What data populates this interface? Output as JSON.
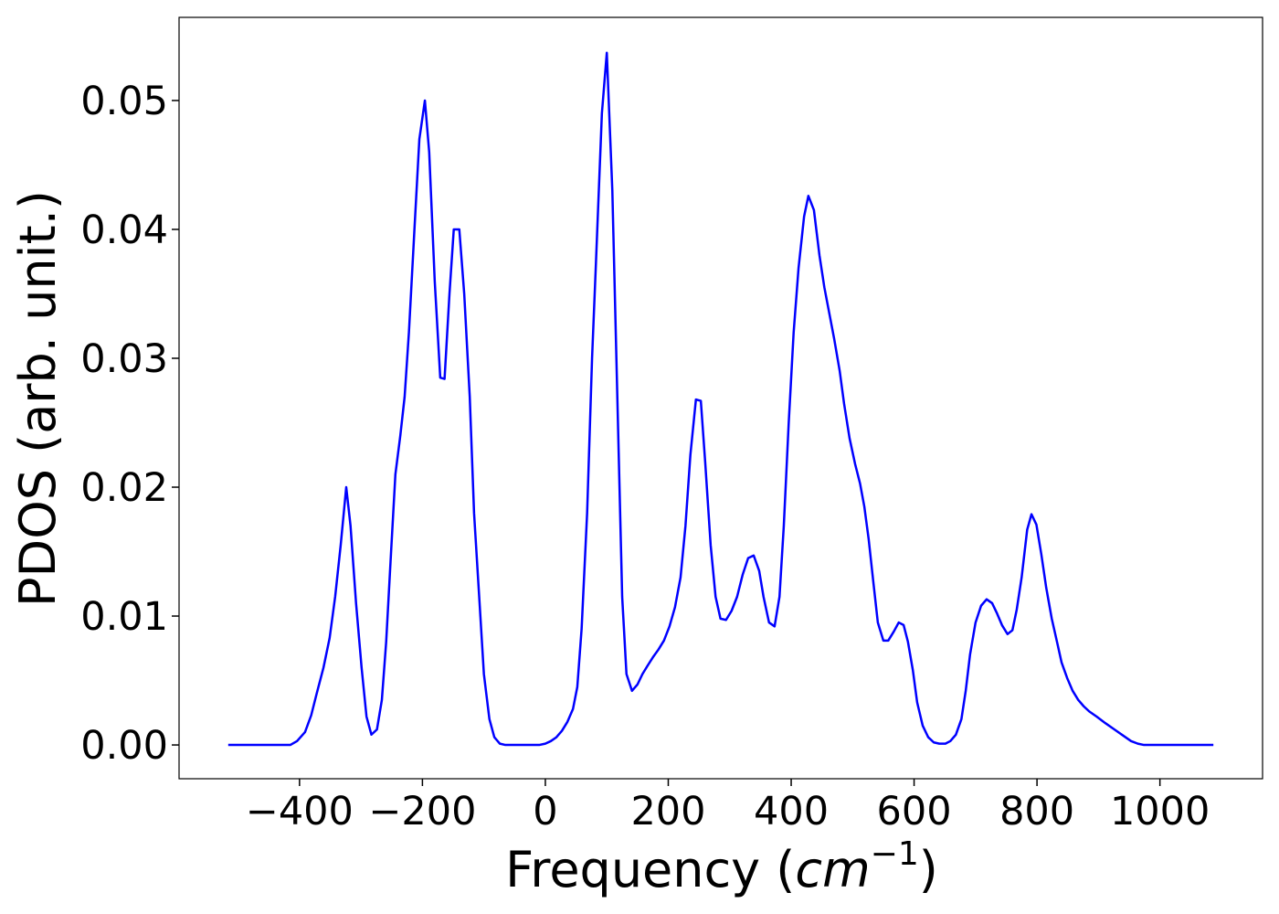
{
  "chart_data": {
    "type": "line",
    "xlabel": [
      "Frequency (",
      "cm",
      "−1",
      ")"
    ],
    "ylabel": "PDOS (arb. unit.)",
    "color": "#0000ff",
    "xlim": [
      -596,
      1167
    ],
    "ylim": [
      -0.00262,
      0.05645
    ],
    "xticks": [
      {
        "value": -400,
        "label": "−400"
      },
      {
        "value": -200,
        "label": "−200"
      },
      0,
      200,
      400,
      600,
      800,
      1000
    ],
    "yticks": [
      {
        "value": 0,
        "label": "0.00"
      },
      0.01,
      0.02,
      0.03,
      0.04,
      0.05
    ],
    "x": [
      -516,
      -415,
      -404,
      -391,
      -381,
      -372,
      -361,
      -351,
      -342,
      -333,
      -324,
      -317,
      -308,
      -299,
      -291,
      -283,
      -274,
      -266,
      -259,
      -251,
      -244,
      -236,
      -229,
      -222,
      -213,
      -205,
      -196,
      -189,
      -180,
      -171,
      -164,
      -156,
      -149,
      -140,
      -132,
      -123,
      -116,
      -107,
      -100,
      -91,
      -83,
      -74,
      -65,
      -10,
      0,
      9,
      18,
      27,
      36,
      45,
      52,
      59,
      68,
      76,
      82,
      92,
      100,
      109,
      125,
      132,
      141,
      150,
      158,
      167,
      175,
      184,
      193,
      202,
      211,
      220,
      228,
      236,
      245,
      253,
      260,
      269,
      277,
      285,
      294,
      303,
      312,
      321,
      330,
      339,
      348,
      355,
      364,
      373,
      381,
      388,
      396,
      404,
      412,
      421,
      428,
      437,
      446,
      454,
      462,
      470,
      479,
      486,
      495,
      504,
      512,
      519,
      526,
      534,
      541,
      550,
      558,
      567,
      575,
      583,
      590,
      598,
      605,
      614,
      623,
      632,
      641,
      651,
      659,
      668,
      677,
      684,
      691,
      700,
      709,
      718,
      727,
      735,
      743,
      752,
      760,
      767,
      775,
      784,
      791,
      799,
      807,
      815,
      824,
      833,
      840,
      849,
      858,
      867,
      876,
      885,
      897,
      911,
      926,
      941,
      953,
      964,
      974,
      1087
    ],
    "values": [
      0,
      0,
      0.0003,
      0.001,
      0.0023,
      0.004,
      0.006,
      0.0083,
      0.0115,
      0.0155,
      0.02,
      0.017,
      0.011,
      0.006,
      0.0022,
      0.0008,
      0.0012,
      0.0035,
      0.008,
      0.015,
      0.021,
      0.024,
      0.027,
      0.032,
      0.04,
      0.047,
      0.05,
      0.046,
      0.036,
      0.0285,
      0.0284,
      0.035,
      0.04,
      0.04,
      0.035,
      0.027,
      0.018,
      0.011,
      0.0055,
      0.002,
      0.0006,
      0.0001,
      0,
      0,
      0.0001,
      0.0003,
      0.0006,
      0.0011,
      0.0018,
      0.0028,
      0.0045,
      0.009,
      0.018,
      0.03,
      0.037,
      0.049,
      0.0537,
      0.043,
      0.0115,
      0.0055,
      0.0042,
      0.0047,
      0.0055,
      0.0062,
      0.0068,
      0.0074,
      0.0081,
      0.0092,
      0.0107,
      0.013,
      0.017,
      0.0225,
      0.0268,
      0.0267,
      0.022,
      0.0155,
      0.0115,
      0.0098,
      0.0097,
      0.0104,
      0.0115,
      0.0132,
      0.0145,
      0.0147,
      0.0135,
      0.0115,
      0.0095,
      0.0092,
      0.0115,
      0.017,
      0.025,
      0.032,
      0.037,
      0.041,
      0.0426,
      0.0415,
      0.038,
      0.0355,
      0.0335,
      0.0315,
      0.029,
      0.0265,
      0.0238,
      0.0218,
      0.0203,
      0.0185,
      0.016,
      0.0125,
      0.0095,
      0.0081,
      0.0081,
      0.0088,
      0.0095,
      0.0093,
      0.008,
      0.0058,
      0.0033,
      0.0015,
      0.0006,
      0.0002,
      0.0001,
      0.0001,
      0.0003,
      0.0008,
      0.002,
      0.0042,
      0.007,
      0.0095,
      0.0108,
      0.0113,
      0.011,
      0.0102,
      0.0093,
      0.0086,
      0.0089,
      0.0105,
      0.013,
      0.0167,
      0.0179,
      0.0171,
      0.0148,
      0.0122,
      0.0098,
      0.0079,
      0.0064,
      0.0052,
      0.0042,
      0.0035,
      0.003,
      0.0026,
      0.0022,
      0.0017,
      0.0012,
      0.0007,
      0.0003,
      0.0001,
      0,
      0
    ]
  }
}
